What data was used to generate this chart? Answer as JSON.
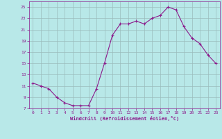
{
  "x": [
    0,
    1,
    2,
    3,
    4,
    5,
    6,
    7,
    8,
    9,
    10,
    11,
    12,
    13,
    14,
    15,
    16,
    17,
    18,
    19,
    20,
    21,
    22,
    23
  ],
  "y": [
    11.5,
    11.0,
    10.5,
    9.0,
    8.0,
    7.5,
    7.5,
    7.5,
    10.5,
    15.0,
    20.0,
    22.0,
    22.0,
    22.5,
    22.0,
    23.0,
    23.5,
    25.0,
    24.5,
    21.5,
    19.5,
    18.5,
    16.5,
    15.0
  ],
  "line_color": "#8b1a8b",
  "marker": "+",
  "bg_color": "#b8e8e8",
  "grid_color": "#9bbcbc",
  "xlabel": "Windchill (Refroidissement éolien,°C)",
  "xlabel_color": "#8b1a8b",
  "tick_color": "#8b1a8b",
  "ylim": [
    7,
    26
  ],
  "xlim": [
    -0.5,
    23.5
  ],
  "yticks": [
    7,
    9,
    11,
    13,
    15,
    17,
    19,
    21,
    23,
    25
  ],
  "xticks": [
    0,
    1,
    2,
    3,
    4,
    5,
    6,
    7,
    8,
    9,
    10,
    11,
    12,
    13,
    14,
    15,
    16,
    17,
    18,
    19,
    20,
    21,
    22,
    23
  ],
  "figsize": [
    3.2,
    2.0
  ],
  "dpi": 100
}
